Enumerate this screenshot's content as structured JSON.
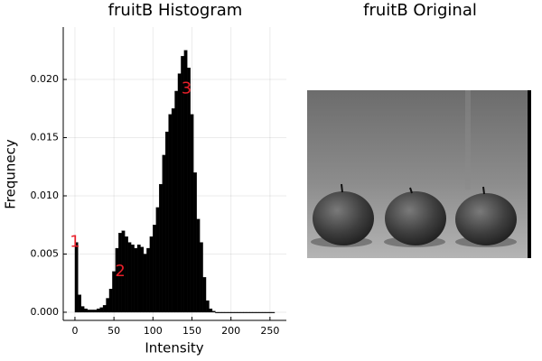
{
  "chart_data": {
    "type": "histogram",
    "title": "fruitB Histogram",
    "x_label": "Intensity",
    "y_label": "Frequnecy",
    "bins": [
      0,
      4,
      8,
      12,
      16,
      20,
      24,
      28,
      32,
      36,
      40,
      44,
      48,
      52,
      56,
      60,
      64,
      68,
      72,
      76,
      80,
      84,
      88,
      92,
      96,
      100,
      104,
      108,
      112,
      116,
      120,
      124,
      128,
      132,
      136,
      140,
      144,
      148,
      152,
      156,
      160,
      164,
      168,
      172,
      176,
      180,
      184,
      188,
      192,
      196,
      200,
      204,
      208,
      212,
      216,
      220,
      224,
      228,
      232,
      236,
      240,
      244,
      248,
      252,
      256
    ],
    "counts": [
      0.006,
      0.0015,
      0.0005,
      0.0003,
      0.0002,
      0.0002,
      0.0002,
      0.0003,
      0.0004,
      0.0006,
      0.0012,
      0.002,
      0.0035,
      0.0055,
      0.0068,
      0.007,
      0.0065,
      0.006,
      0.0058,
      0.0055,
      0.0058,
      0.0056,
      0.005,
      0.0055,
      0.0065,
      0.0075,
      0.009,
      0.011,
      0.0135,
      0.0155,
      0.017,
      0.0175,
      0.019,
      0.0205,
      0.022,
      0.0225,
      0.021,
      0.017,
      0.012,
      0.008,
      0.006,
      0.003,
      0.001,
      0.0003,
      0.0001,
      0,
      0,
      0,
      0,
      0,
      0,
      0,
      0,
      0,
      0,
      0,
      0,
      0,
      0,
      0,
      0,
      0,
      0,
      0
    ],
    "color": "#000000",
    "xlim": [
      -15,
      271
    ],
    "ylim": [
      -0.0007,
      0.0245
    ],
    "xticks": [
      0,
      50,
      100,
      150,
      200,
      250
    ],
    "yticks": [
      {
        "value": 0,
        "label": "0.000"
      },
      {
        "value": 0.005,
        "label": "0.005"
      },
      {
        "value": 0.01,
        "label": "0.010"
      },
      {
        "value": 0.015,
        "label": "0.015"
      },
      {
        "value": 0.02,
        "label": "0.020"
      }
    ],
    "grid": true,
    "annotations": [
      {
        "text": "1",
        "x": 0,
        "y": 0.006
      },
      {
        "text": "2",
        "x": 58,
        "y": 0.0035
      },
      {
        "text": "3",
        "x": 143,
        "y": 0.0192
      }
    ]
  },
  "image_panel": {
    "title": "fruitB Original"
  }
}
